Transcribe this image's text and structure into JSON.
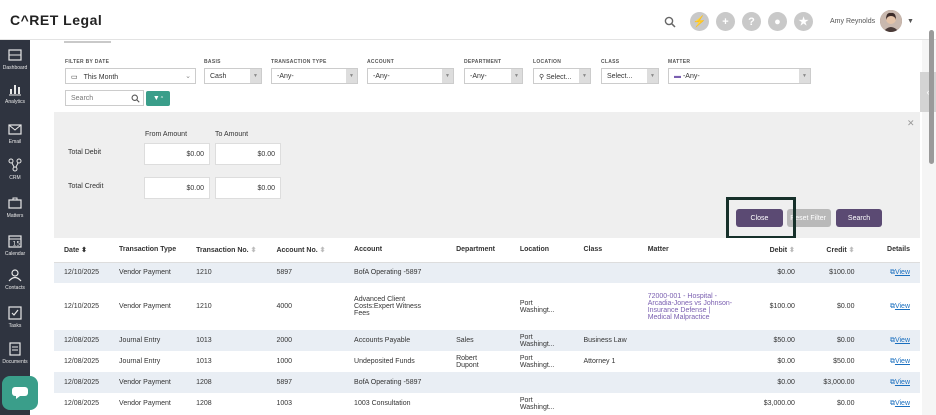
{
  "app": {
    "logo": "C^RET Legal",
    "user_name": "Amy Reynolds"
  },
  "colors": {
    "accent": "#5b4a73",
    "teal": "#3a9e8a",
    "row_alt": "#e9eef4",
    "matter_link": "#7a5fb0"
  },
  "sidebar": {
    "items": [
      {
        "label": "Dashboard",
        "icon": "dashboard-icon"
      },
      {
        "label": "Analytics",
        "icon": "analytics-icon"
      },
      {
        "label": "Email",
        "icon": "email-icon"
      },
      {
        "label": "CRM",
        "icon": "crm-icon"
      },
      {
        "label": "Matters",
        "icon": "briefcase-icon"
      },
      {
        "label": "Calendar",
        "icon": "calendar-icon"
      },
      {
        "label": "Contacts",
        "icon": "contacts-icon"
      },
      {
        "label": "Tasks",
        "icon": "tasks-icon"
      },
      {
        "label": "Documents",
        "icon": "documents-icon"
      }
    ]
  },
  "filters": {
    "filter_by_date": {
      "label": "FILTER BY DATE",
      "value": "This Month"
    },
    "basis": {
      "label": "BASIS",
      "value": "Cash"
    },
    "transaction_type": {
      "label": "TRANSACTION TYPE",
      "value": "-Any-"
    },
    "account": {
      "label": "ACCOUNT",
      "value": "-Any-"
    },
    "department": {
      "label": "DEPARTMENT",
      "value": "-Any-"
    },
    "location": {
      "label": "LOCATION",
      "value": "Select..."
    },
    "class": {
      "label": "CLASS",
      "value": "Select..."
    },
    "matter": {
      "label": "MATTER",
      "value": "-Any-"
    },
    "search_placeholder": "Search"
  },
  "amount_panel": {
    "from_label": "From Amount",
    "to_label": "To Amount",
    "total_debit_label": "Total Debit",
    "total_credit_label": "Total Credit",
    "debit_from": "$0.00",
    "debit_to": "$0.00",
    "credit_from": "$0.00",
    "credit_to": "$0.00",
    "close_label": "Close",
    "reset_label": "Reset Filter",
    "search_label": "Search"
  },
  "table": {
    "headers": [
      "Date",
      "Transaction Type",
      "Transaction No.",
      "Account No.",
      "Account",
      "Department",
      "Location",
      "Class",
      "Matter",
      "Debit",
      "Credit",
      "Details"
    ],
    "rows": [
      {
        "date": "12/10/2025",
        "type": "Vendor Payment",
        "no": "1210",
        "acct_no": "5897",
        "account": "BofA Operating -5897",
        "dept": "",
        "loc": "",
        "class": "",
        "matter": "",
        "debit": "$0.00",
        "credit": "$100.00",
        "details": "View"
      },
      {
        "date": "12/10/2025",
        "type": "Vendor Payment",
        "no": "1210",
        "acct_no": "4000",
        "account": "Advanced Client Costs:Expert Witness Fees",
        "dept": "",
        "loc": "Port Washingt...",
        "class": "",
        "matter": "72000-001 - Hospital - Arcadia-Jones vs Johnson-Insurance Defense | Medical Malpractice",
        "debit": "$100.00",
        "credit": "$0.00",
        "details": "View"
      },
      {
        "date": "12/08/2025",
        "type": "Journal Entry",
        "no": "1013",
        "acct_no": "2000",
        "account": "Accounts Payable",
        "dept": "Sales",
        "loc": "Port Washingt...",
        "class": "Business Law",
        "matter": "",
        "debit": "$50.00",
        "credit": "$0.00",
        "details": "View"
      },
      {
        "date": "12/08/2025",
        "type": "Journal Entry",
        "no": "1013",
        "acct_no": "1000",
        "account": "Undeposited Funds",
        "dept": "Robert Dupont",
        "loc": "Port Washingt...",
        "class": "Attorney 1",
        "matter": "",
        "debit": "$0.00",
        "credit": "$50.00",
        "details": "View"
      },
      {
        "date": "12/08/2025",
        "type": "Vendor Payment",
        "no": "1208",
        "acct_no": "5897",
        "account": "BofA Operating -5897",
        "dept": "",
        "loc": "",
        "class": "",
        "matter": "",
        "debit": "$0.00",
        "credit": "$3,000.00",
        "details": "View"
      },
      {
        "date": "12/08/2025",
        "type": "Vendor Payment",
        "no": "1208",
        "acct_no": "1003",
        "account": "1003 Consultation",
        "dept": "",
        "loc": "Port Washingt...",
        "class": "",
        "matter": "",
        "debit": "$3,000.00",
        "credit": "$0.00",
        "details": "View"
      }
    ]
  }
}
